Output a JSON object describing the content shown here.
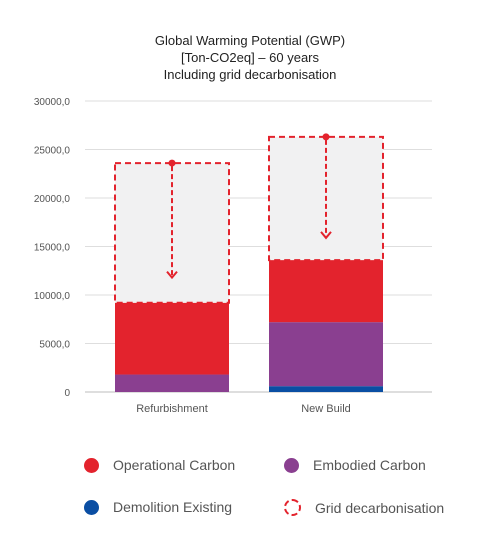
{
  "chart_data": {
    "type": "bar",
    "stacked": true,
    "title": [
      "Global Warming Potential (GWP)",
      "[Ton-CO2eq] – 60 years",
      "Including grid decarbonisation"
    ],
    "categories": [
      "Refurbishment",
      "New Build"
    ],
    "series": [
      {
        "name": "Demolition Existing",
        "color": "#0a4ea3",
        "values": [
          0,
          600
        ]
      },
      {
        "name": "Embodied Carbon",
        "color": "#8a3f90",
        "values": [
          1800,
          6600
        ]
      },
      {
        "name": "Operational Carbon",
        "color": "#e3232d",
        "values": [
          7400,
          6400
        ]
      },
      {
        "name": "Grid decarbonisation",
        "color": "#f1f1f2",
        "style": "dashed-outline",
        "values": [
          14400,
          12700
        ]
      }
    ],
    "ylim": [
      0,
      30000
    ],
    "yticks": [
      "0",
      "5000,0",
      "10000,0",
      "15000,0",
      "20000,0",
      "25000,0",
      "30000,0"
    ],
    "grid": true,
    "legend": "bottom"
  },
  "legend": {
    "operational": "Operational Carbon",
    "embodied": "Embodied Carbon",
    "demolition": "Demolition Existing",
    "grid": "Grid decarbonisation"
  }
}
